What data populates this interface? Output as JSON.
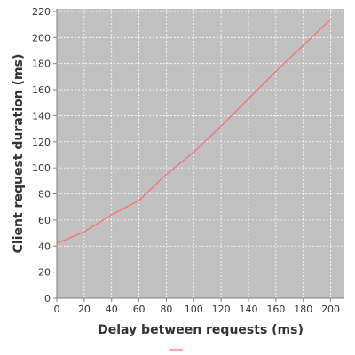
{
  "chart_data": {
    "type": "line",
    "title": "",
    "xlabel": "Delay between requests (ms)",
    "ylabel": "Client request duration (ms)",
    "xlim": [
      0,
      210
    ],
    "ylim": [
      0,
      222
    ],
    "xticks": [
      "0",
      "20",
      "40",
      "60",
      "80",
      "100",
      "120",
      "140",
      "160",
      "180",
      "200"
    ],
    "yticks": [
      "0",
      "20",
      "40",
      "60",
      "80",
      "100",
      "120",
      "140",
      "160",
      "180",
      "200",
      "220"
    ],
    "grid": true,
    "legend": "bottom",
    "series": [
      {
        "name": "",
        "color": "#ff6a6a",
        "x": [
          0,
          20,
          40,
          60,
          80,
          100,
          120,
          140,
          160,
          180,
          200
        ],
        "y": [
          42,
          51,
          64,
          75,
          95,
          112,
          132,
          153,
          174,
          194,
          214
        ]
      }
    ]
  },
  "colors": {
    "plot_background": "#c0c0c0",
    "grid": "#ffffff",
    "axis": "#808080",
    "series": "#ff6a6a"
  }
}
